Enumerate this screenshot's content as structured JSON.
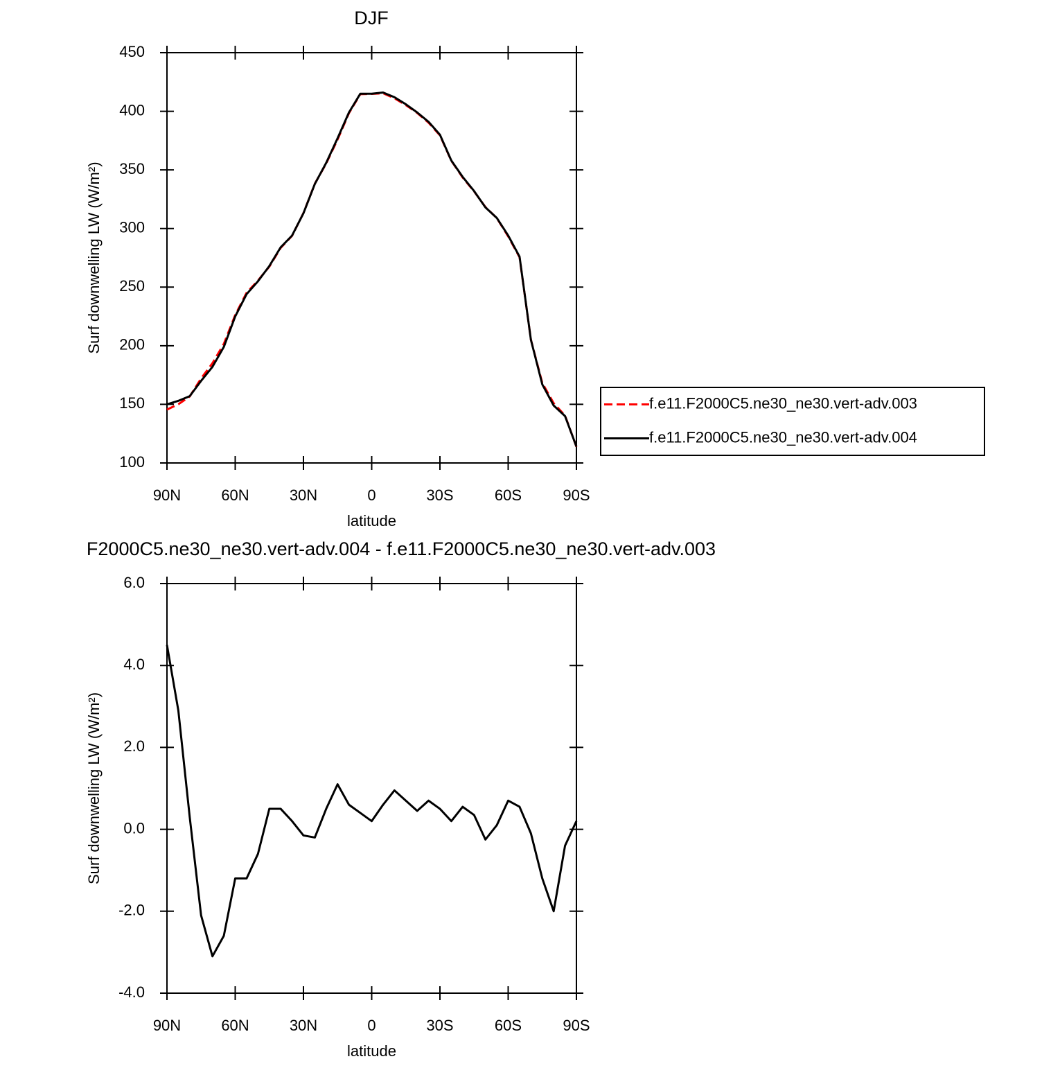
{
  "chart_data": [
    {
      "type": "line",
      "title": "DJF",
      "xlabel": "latitude",
      "ylabel": "Surf downwelling LW (W/m²)",
      "x": [
        90,
        85,
        80,
        75,
        70,
        65,
        60,
        55,
        50,
        45,
        40,
        35,
        30,
        25,
        20,
        15,
        10,
        5,
        0,
        -5,
        -10,
        -15,
        -20,
        -25,
        -30,
        -35,
        -40,
        -45,
        -50,
        -55,
        -60,
        -65,
        -70,
        -75,
        -80,
        -85,
        -90
      ],
      "series": [
        {
          "name": "f.e11.F2000C5.ne30_ne30.vert-adv.003",
          "color": "#ff0000",
          "dash": true,
          "values": [
            145.5,
            150.1,
            156.7,
            172.1,
            185.1,
            201.6,
            226.2,
            245.2,
            255.6,
            267.5,
            283.5,
            293.8,
            313.2,
            338.2,
            355.5,
            375.9,
            398.4,
            414.6,
            414.8,
            415.4,
            411.1,
            405.3,
            398.6,
            390.3,
            379.5,
            357.8,
            343.5,
            331.7,
            318.3,
            308.9,
            293.3,
            275.5,
            205.1,
            168.2,
            151,
            140.4,
            113.8
          ]
        },
        {
          "name": "f.e11.F2000C5.ne30_ne30.vert-adv.004",
          "color": "#000000",
          "dash": false,
          "values": [
            150,
            153,
            157,
            170,
            182,
            199,
            225,
            244,
            255,
            268,
            284,
            294,
            313,
            338,
            356,
            377,
            399,
            415,
            415,
            416,
            412,
            406,
            399,
            391,
            380,
            358,
            344,
            332,
            318,
            309,
            294,
            276,
            205,
            167,
            149,
            140,
            114
          ]
        }
      ],
      "xlim": [
        90,
        -90
      ],
      "xticks": [
        {
          "value": 90,
          "label": "90N"
        },
        {
          "value": 60,
          "label": "60N"
        },
        {
          "value": 30,
          "label": "30N"
        },
        0,
        {
          "value": -30,
          "label": "30S"
        },
        {
          "value": -60,
          "label": "60S"
        },
        {
          "value": -90,
          "label": "90S"
        }
      ],
      "ylim": [
        100,
        450
      ],
      "yticks": [
        100,
        150,
        200,
        250,
        300,
        350,
        400,
        450
      ],
      "legend": "right"
    },
    {
      "type": "line",
      "title": "F2000C5.ne30_ne30.vert-adv.004 - f.e11.F2000C5.ne30_ne30.vert-adv.003",
      "xlabel": "latitude",
      "ylabel": "Surf downwelling LW (W/m²)",
      "x": [
        90,
        85,
        80,
        75,
        70,
        65,
        60,
        55,
        50,
        45,
        40,
        35,
        30,
        25,
        20,
        15,
        10,
        5,
        0,
        -5,
        -10,
        -15,
        -20,
        -25,
        -30,
        -35,
        -40,
        -45,
        -50,
        -55,
        -60,
        -65,
        -70,
        -75,
        -80,
        -85,
        -90
      ],
      "series": [
        {
          "color": "#000000",
          "dash": false,
          "values": [
            4.5,
            2.9,
            0.3,
            -2.1,
            -3.1,
            -2.6,
            -1.2,
            -1.2,
            -0.6,
            0.5,
            0.5,
            0.2,
            -0.15,
            -0.2,
            0.5,
            1.1,
            0.6,
            0.4,
            0.2,
            0.6,
            0.95,
            0.7,
            0.45,
            0.7,
            0.5,
            0.2,
            0.55,
            0.35,
            -0.25,
            0.1,
            0.7,
            0.55,
            -0.1,
            -1.2,
            -2.0,
            -0.4,
            0.2
          ]
        }
      ],
      "xlim": [
        90,
        -90
      ],
      "xticks": [
        {
          "value": 90,
          "label": "90N"
        },
        {
          "value": 60,
          "label": "60N"
        },
        {
          "value": 30,
          "label": "30N"
        },
        0,
        {
          "value": -30,
          "label": "30S"
        },
        {
          "value": -60,
          "label": "60S"
        },
        {
          "value": -90,
          "label": "90S"
        }
      ],
      "ylim": [
        -4,
        6
      ],
      "yticks": [
        {
          "value": -4,
          "label": "-4.0"
        },
        {
          "value": -2,
          "label": "-2.0"
        },
        {
          "value": 0,
          "label": "0.0"
        },
        {
          "value": 2,
          "label": "2.0"
        },
        {
          "value": 4,
          "label": "4.0"
        },
        {
          "value": 6,
          "label": "6.0"
        }
      ]
    }
  ]
}
